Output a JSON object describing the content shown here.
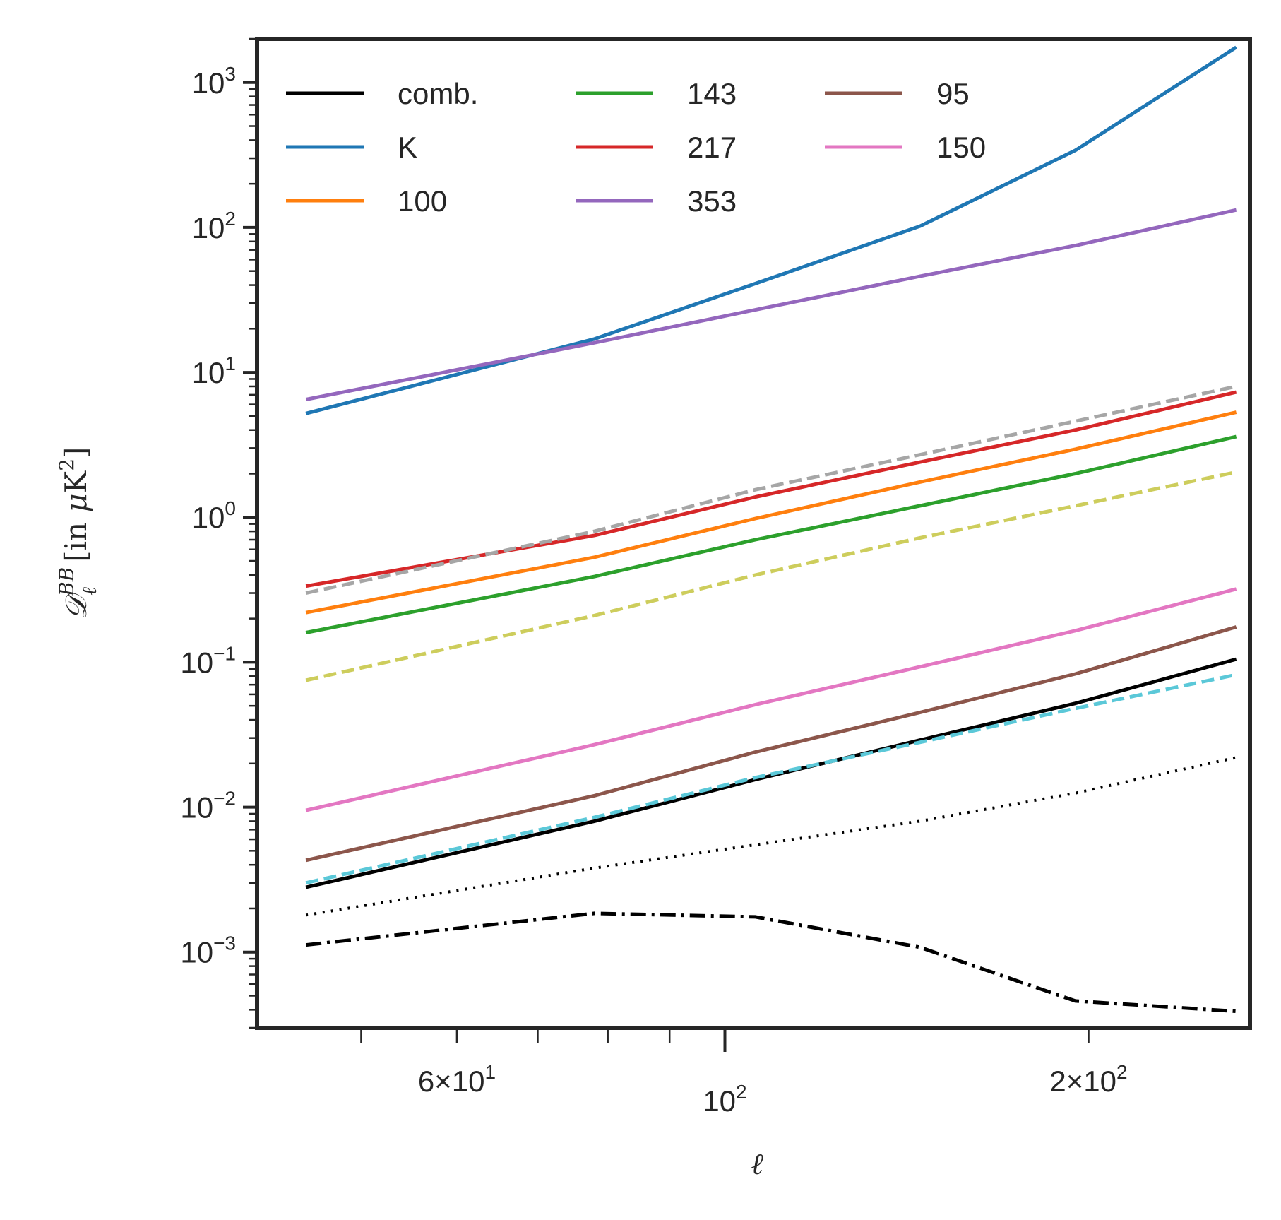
{
  "chart_data": {
    "type": "line",
    "xscale": "log",
    "yscale": "log",
    "xlim": [
      41,
      272
    ],
    "ylim": [
      0.0003,
      2000
    ],
    "xlabel": "ℓ",
    "ylabel": {
      "main": "𝒟",
      "sup": "BB",
      "sub": "ℓ",
      "unit_open": " [in ",
      "unit_mu": "μ",
      "unit_K": "K",
      "unit_pow": "2",
      "unit_close": "]"
    },
    "x_ticks": [
      {
        "value": 60,
        "mant": "6×10",
        "exp": "1"
      },
      {
        "value": 100,
        "mant": "10",
        "exp": "2"
      },
      {
        "value": 200,
        "mant": "2×10",
        "exp": "2"
      }
    ],
    "y_ticks": [
      {
        "value": 0.001,
        "mant": "10",
        "exp": "−3"
      },
      {
        "value": 0.01,
        "mant": "10",
        "exp": "−2"
      },
      {
        "value": 0.1,
        "mant": "10",
        "exp": "−1"
      },
      {
        "value": 1,
        "mant": "10",
        "exp": "0"
      },
      {
        "value": 10,
        "mant": "10",
        "exp": "1"
      },
      {
        "value": 100,
        "mant": "10",
        "exp": "2"
      },
      {
        "value": 1000,
        "mant": "10",
        "exp": "3"
      }
    ],
    "x": [
      45,
      78,
      106,
      145,
      195,
      265
    ],
    "series": [
      {
        "name": "comb.",
        "color": "#000000",
        "dash": "solid",
        "legend": true,
        "values": [
          0.0028,
          0.008,
          0.0155,
          0.029,
          0.052,
          0.105
        ]
      },
      {
        "name": "K",
        "color": "#1f77b4",
        "dash": "solid",
        "legend": true,
        "values": [
          5.2,
          17,
          41,
          102,
          340,
          1750
        ]
      },
      {
        "name": "100",
        "color": "#ff7f0e",
        "dash": "solid",
        "legend": true,
        "values": [
          0.22,
          0.53,
          0.98,
          1.75,
          2.95,
          5.3
        ]
      },
      {
        "name": "143",
        "color": "#2ca02c",
        "dash": "solid",
        "legend": true,
        "values": [
          0.16,
          0.39,
          0.7,
          1.2,
          2.0,
          3.6
        ]
      },
      {
        "name": "217",
        "color": "#d62728",
        "dash": "solid",
        "legend": true,
        "values": [
          0.335,
          0.75,
          1.38,
          2.4,
          4.0,
          7.3
        ]
      },
      {
        "name": "353",
        "color": "#9467bd",
        "dash": "solid",
        "legend": true,
        "values": [
          6.5,
          16,
          27,
          46,
          75,
          132
        ]
      },
      {
        "name": "95",
        "color": "#8c564b",
        "dash": "solid",
        "legend": true,
        "values": [
          0.0043,
          0.012,
          0.024,
          0.045,
          0.083,
          0.175
        ]
      },
      {
        "name": "150",
        "color": "#e377c2",
        "dash": "solid",
        "legend": true,
        "values": [
          0.0095,
          0.027,
          0.051,
          0.093,
          0.165,
          0.32
        ]
      },
      {
        "name": "",
        "color": "#a6a6a6",
        "dash": "dashed",
        "legend": false,
        "values": [
          0.3,
          0.8,
          1.55,
          2.7,
          4.6,
          8.0
        ]
      },
      {
        "name": "",
        "color": "#cdcd5c",
        "dash": "dashed",
        "legend": false,
        "values": [
          0.075,
          0.21,
          0.4,
          0.72,
          1.2,
          2.05
        ]
      },
      {
        "name": "",
        "color": "#5bc8d8",
        "dash": "dashed",
        "legend": false,
        "values": [
          0.003,
          0.0085,
          0.016,
          0.028,
          0.048,
          0.082
        ]
      },
      {
        "name": "",
        "color": "#000000",
        "dash": "dotted",
        "legend": false,
        "values": [
          0.0018,
          0.0038,
          0.0055,
          0.008,
          0.0125,
          0.022
        ]
      },
      {
        "name": "",
        "color": "#000000",
        "dash": "dashdot",
        "legend": false,
        "values": [
          0.00112,
          0.00185,
          0.00175,
          0.00108,
          0.00046,
          0.00039
        ]
      }
    ],
    "legend": {
      "position": "top-left",
      "columns": 3
    }
  }
}
